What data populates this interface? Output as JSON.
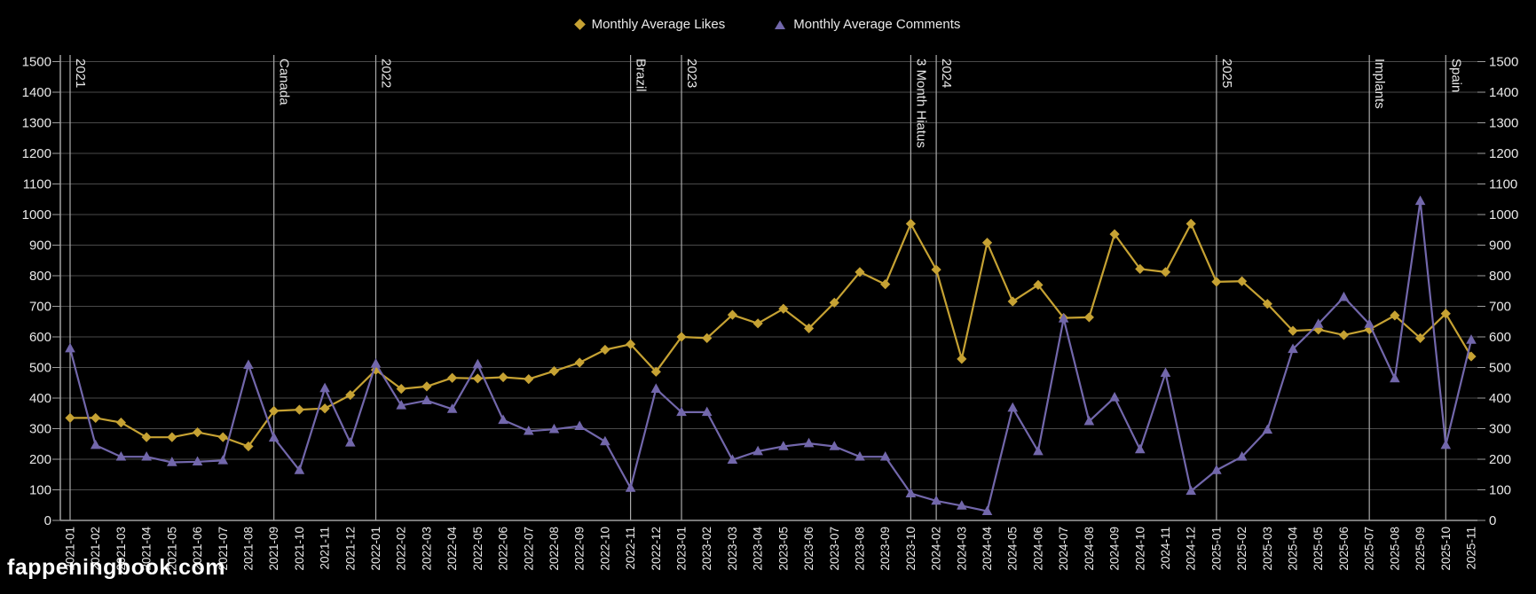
{
  "page": {
    "background_color": "#000000",
    "text_color": "#e8e8e8"
  },
  "legend": {
    "items": [
      {
        "label": "Monthly Average Likes",
        "marker": "diamond",
        "color": "#c6a233"
      },
      {
        "label": "Monthly Average Comments",
        "marker": "triangle",
        "color": "#7267ab"
      }
    ]
  },
  "watermark": {
    "text": "fappeningbook.com",
    "color": "#ffffff"
  },
  "chart_data": {
    "type": "line",
    "title": "",
    "xlabel": "",
    "ylabel": "",
    "ylim": [
      0,
      1500
    ],
    "ytick_step": 100,
    "y_axes": [
      "left",
      "right"
    ],
    "grid": true,
    "grid_color": "#4a4a4a",
    "axis_color": "#9f9f9f",
    "annotation_line_color": "#aaaaaa",
    "tick_label_color": "#e8e8e8",
    "categories": [
      "2021-01",
      "2021-02",
      "2021-03",
      "2021-04",
      "2021-05",
      "2021-06",
      "2021-07",
      "2021-08",
      "2021-09",
      "2021-10",
      "2021-11",
      "2021-12",
      "2022-01",
      "2022-02",
      "2022-03",
      "2022-04",
      "2022-05",
      "2022-06",
      "2022-07",
      "2022-08",
      "2022-09",
      "2022-10",
      "2022-11",
      "2022-12",
      "2023-01",
      "2023-02",
      "2023-03",
      "2023-04",
      "2023-05",
      "2023-06",
      "2023-07",
      "2023-08",
      "2023-09",
      "2023-10",
      "2024-02",
      "2024-03",
      "2024-04",
      "2024-05",
      "2024-06",
      "2024-07",
      "2024-08",
      "2024-09",
      "2024-10",
      "2024-11",
      "2024-12",
      "2025-01",
      "2025-02",
      "2025-03",
      "2025-04",
      "2025-05",
      "2025-06",
      "2025-07",
      "2025-08",
      "2025-09",
      "2025-10",
      "2025-11"
    ],
    "series": [
      {
        "name": "Monthly Average Likes",
        "marker": "diamond",
        "color": "#c6a233",
        "values": [
          335,
          335,
          320,
          272,
          272,
          288,
          272,
          242,
          358,
          362,
          366,
          410,
          492,
          430,
          438,
          466,
          464,
          468,
          462,
          488,
          516,
          558,
          576,
          486,
          600,
          596,
          672,
          644,
          692,
          628,
          712,
          812,
          772,
          970,
          820,
          528,
          908,
          716,
          770,
          662,
          664,
          936,
          822,
          812,
          970,
          780,
          782,
          708,
          620,
          624,
          606,
          624,
          670,
          596,
          676,
          536
        ]
      },
      {
        "name": "Monthly Average Comments",
        "marker": "triangle",
        "color": "#7267ab",
        "values": [
          562,
          246,
          208,
          208,
          190,
          192,
          196,
          508,
          270,
          164,
          432,
          254,
          512,
          376,
          392,
          364,
          510,
          328,
          292,
          298,
          308,
          258,
          106,
          430,
          354,
          354,
          198,
          226,
          242,
          252,
          242,
          208,
          208,
          88,
          64,
          48,
          30,
          368,
          226,
          660,
          324,
          402,
          232,
          482,
          96,
          164,
          208,
          296,
          560,
          642,
          730,
          642,
          464,
          1044,
          246,
          590
        ]
      }
    ],
    "annotations": [
      {
        "label": "2021",
        "category": "2021-01"
      },
      {
        "label": "Canada",
        "category": "2021-09"
      },
      {
        "label": "2022",
        "category": "2022-01"
      },
      {
        "label": "Brazil",
        "category": "2022-11"
      },
      {
        "label": "2023",
        "category": "2023-01"
      },
      {
        "label": "3 Month Hiatus",
        "category": "2023-10"
      },
      {
        "label": "2024",
        "category": "2024-02"
      },
      {
        "label": "2025",
        "category": "2025-01"
      },
      {
        "label": "Implants",
        "category": "2025-07"
      },
      {
        "label": "Spain",
        "category": "2025-10"
      }
    ]
  }
}
